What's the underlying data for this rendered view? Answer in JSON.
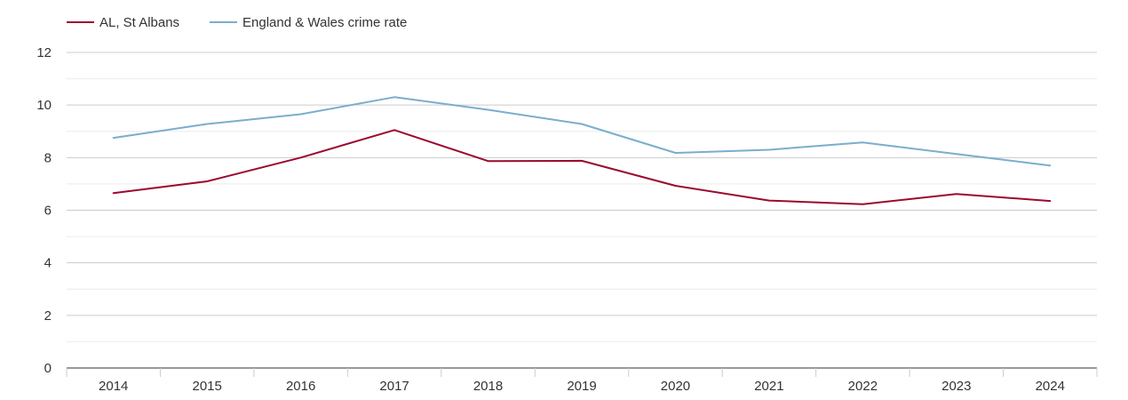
{
  "chart_data": {
    "type": "line",
    "title": "",
    "xlabel": "",
    "ylabel": "",
    "categories": [
      "2014",
      "2015",
      "2016",
      "2017",
      "2018",
      "2019",
      "2020",
      "2021",
      "2022",
      "2023",
      "2024"
    ],
    "ylim": [
      0,
      12
    ],
    "yticks": [
      0,
      2,
      4,
      6,
      8,
      10,
      12
    ],
    "grid": true,
    "legend_position": "top-left",
    "series": [
      {
        "name": "AL, St Albans",
        "color": "#9b0a2e",
        "values": [
          6.65,
          7.1,
          8.0,
          9.05,
          7.87,
          7.88,
          6.93,
          6.37,
          6.23,
          6.62,
          6.35
        ]
      },
      {
        "name": "England & Wales crime rate",
        "color": "#7aaecd",
        "values": [
          8.75,
          9.28,
          9.65,
          10.3,
          9.82,
          9.28,
          8.18,
          8.3,
          8.58,
          8.14,
          7.7
        ]
      }
    ]
  }
}
